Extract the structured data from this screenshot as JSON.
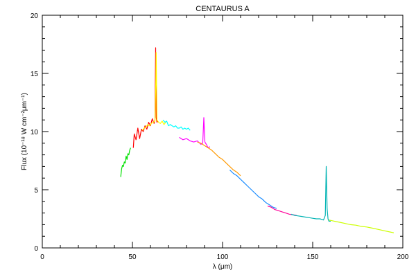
{
  "chart_data": {
    "type": "line",
    "title": "CENTAURUS A",
    "xlabel": "λ (μm)",
    "ylabel": "Flux (10⁻¹⁸ W cm⁻²μm⁻¹)",
    "xlim": [
      0,
      200
    ],
    "ylim": [
      0,
      20
    ],
    "xticks": [
      0,
      50,
      100,
      150,
      200
    ],
    "yticks": [
      0,
      5,
      10,
      15,
      20
    ],
    "grid": false,
    "series": [
      {
        "color": "#00e000",
        "x": [
          43.5,
          44.0,
          44.5,
          45.0,
          45.5,
          46.0,
          46.5,
          47.0,
          47.5,
          48.0,
          48.5,
          49.0
        ],
        "y": [
          6.1,
          6.8,
          7.1,
          7.0,
          7.4,
          7.3,
          7.9,
          7.6,
          8.1,
          8.0,
          8.4,
          8.6
        ]
      },
      {
        "color": "#ff0000",
        "x": [
          50.5,
          51.0,
          52.0,
          53.0,
          54.0,
          55.0,
          56.0,
          57.0,
          58.0,
          59.0,
          60.0,
          61.0,
          62.0,
          62.5,
          62.9,
          63.2,
          63.6,
          64.0
        ],
        "y": [
          8.6,
          9.8,
          9.3,
          10.3,
          9.4,
          10.2,
          10.0,
          10.5,
          10.2,
          10.8,
          10.5,
          11.1,
          10.7,
          11.0,
          17.2,
          11.2,
          10.8,
          10.9
        ]
      },
      {
        "color": "#ffff00",
        "x": [
          55.5,
          56.5,
          57.5,
          58.5,
          59.5,
          60.5,
          61.5,
          62.5,
          63.0,
          63.2,
          63.6,
          64.5,
          65.5,
          66.5,
          67.5,
          68.5
        ],
        "y": [
          10.1,
          10.3,
          10.4,
          10.6,
          10.5,
          10.7,
          10.8,
          10.9,
          14.5,
          16.8,
          11.0,
          10.8,
          10.7,
          10.9,
          10.6,
          10.8
        ]
      },
      {
        "color": "#00ffff",
        "x": [
          67.0,
          68.0,
          69.0,
          70.0,
          71.0,
          72.0,
          73.0,
          74.0,
          75.0,
          76.0,
          77.0,
          78.0,
          79.0,
          80.0,
          81.0,
          82.0
        ],
        "y": [
          11.0,
          10.8,
          10.9,
          10.5,
          10.6,
          10.5,
          10.4,
          10.5,
          10.3,
          10.3,
          10.4,
          10.2,
          10.3,
          10.2,
          10.3,
          10.1
        ]
      },
      {
        "color": "#ff00ff",
        "x": [
          76.0,
          78.0,
          80.0,
          82.0,
          84.0,
          86.0,
          88.0,
          89.0,
          89.6,
          90.2,
          91.0,
          92.0,
          93.0
        ],
        "y": [
          9.5,
          9.3,
          9.4,
          9.2,
          9.1,
          9.2,
          8.9,
          9.0,
          11.2,
          9.1,
          8.9,
          8.6,
          8.7
        ]
      },
      {
        "color": "#ff9900",
        "x": [
          86.0,
          88.0,
          90.0,
          92.0,
          94.0,
          96.0,
          98.0,
          100.0,
          102.0,
          104.0,
          106.0,
          108.0,
          110.0
        ],
        "y": [
          9.1,
          9.0,
          8.8,
          8.6,
          8.4,
          8.1,
          7.8,
          7.6,
          7.3,
          7.0,
          6.7,
          6.5,
          6.2
        ]
      },
      {
        "color": "#1a8cff",
        "x": [
          104.0,
          106.0,
          108.0,
          110.0,
          112.0,
          114.0,
          116.0,
          118.0,
          120.0,
          122.0,
          124.0,
          126.0,
          128.0,
          130.0
        ],
        "y": [
          6.7,
          6.4,
          6.2,
          5.9,
          5.6,
          5.3,
          5.0,
          4.7,
          4.4,
          4.2,
          3.9,
          3.7,
          3.5,
          3.4
        ]
      },
      {
        "color": "#ff0099",
        "x": [
          125.0,
          127.0,
          129.0,
          131.0,
          133.0,
          135.0,
          137.0,
          139.0,
          141.0
        ],
        "y": [
          3.6,
          3.5,
          3.3,
          3.2,
          3.1,
          3.0,
          2.9,
          2.85,
          2.8
        ]
      },
      {
        "color": "#00b3b3",
        "x": [
          138.0,
          140.0,
          142.0,
          144.0,
          146.0,
          148.0,
          150.0,
          152.0,
          154.0,
          156.0,
          157.0,
          157.5,
          158.0,
          158.5,
          159.0,
          160.0
        ],
        "y": [
          2.9,
          2.8,
          2.75,
          2.7,
          2.65,
          2.6,
          2.55,
          2.5,
          2.5,
          2.4,
          2.8,
          7.0,
          3.4,
          2.5,
          2.3,
          2.3
        ]
      },
      {
        "color": "#ccff00",
        "x": [
          159.0,
          162.0,
          165.0,
          168.0,
          171.0,
          174.0,
          177.0,
          180.0,
          183.0,
          186.0,
          189.0,
          192.0,
          195.0
        ],
        "y": [
          2.4,
          2.3,
          2.2,
          2.1,
          2.0,
          1.95,
          1.85,
          1.8,
          1.7,
          1.6,
          1.5,
          1.4,
          1.3
        ]
      }
    ]
  }
}
